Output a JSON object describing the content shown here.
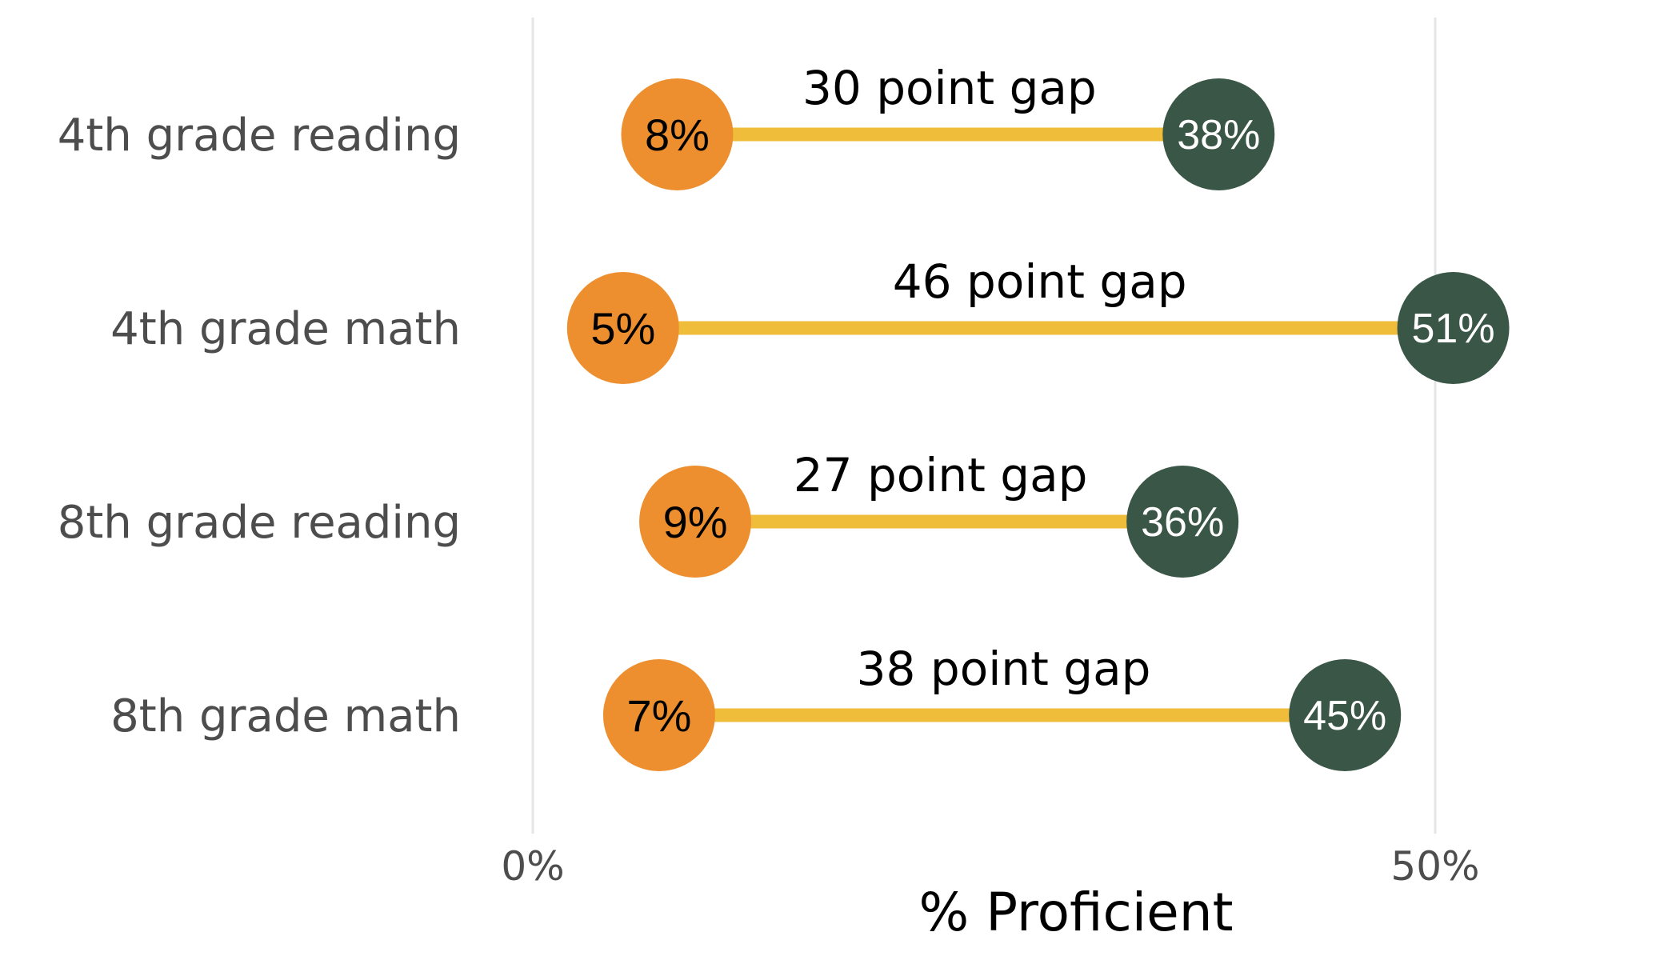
{
  "colors": {
    "low_point": "#EE8F2F",
    "high_point": "#3A5647",
    "connector": "#F0BD3A",
    "gridline": "#E5E5E5",
    "category_text": "#4D4D4D"
  },
  "chart_data": {
    "type": "dumbbell",
    "title": "",
    "xlabel": "% Proficient",
    "ylabel": "",
    "xlim": [
      0,
      0.6
    ],
    "x_ticks": [
      {
        "value": 0,
        "label": "0%"
      },
      {
        "value": 0.5,
        "label": "50%"
      }
    ],
    "grid": "vertical major",
    "legend": "none",
    "categories": [
      "4th grade reading",
      "4th grade math",
      "8th grade reading",
      "8th grade math"
    ],
    "series": [
      {
        "values": [
          0.08,
          0.05,
          0.09,
          0.07
        ],
        "labels": [
          "8%",
          "5%",
          "9%",
          "7%"
        ]
      },
      {
        "values": [
          0.38,
          0.51,
          0.36,
          0.45
        ],
        "labels": [
          "38%",
          "51%",
          "36%",
          "45%"
        ]
      }
    ],
    "annotations": [
      "30 point gap",
      "46 point gap",
      "27 point gap",
      "38 point gap"
    ]
  }
}
